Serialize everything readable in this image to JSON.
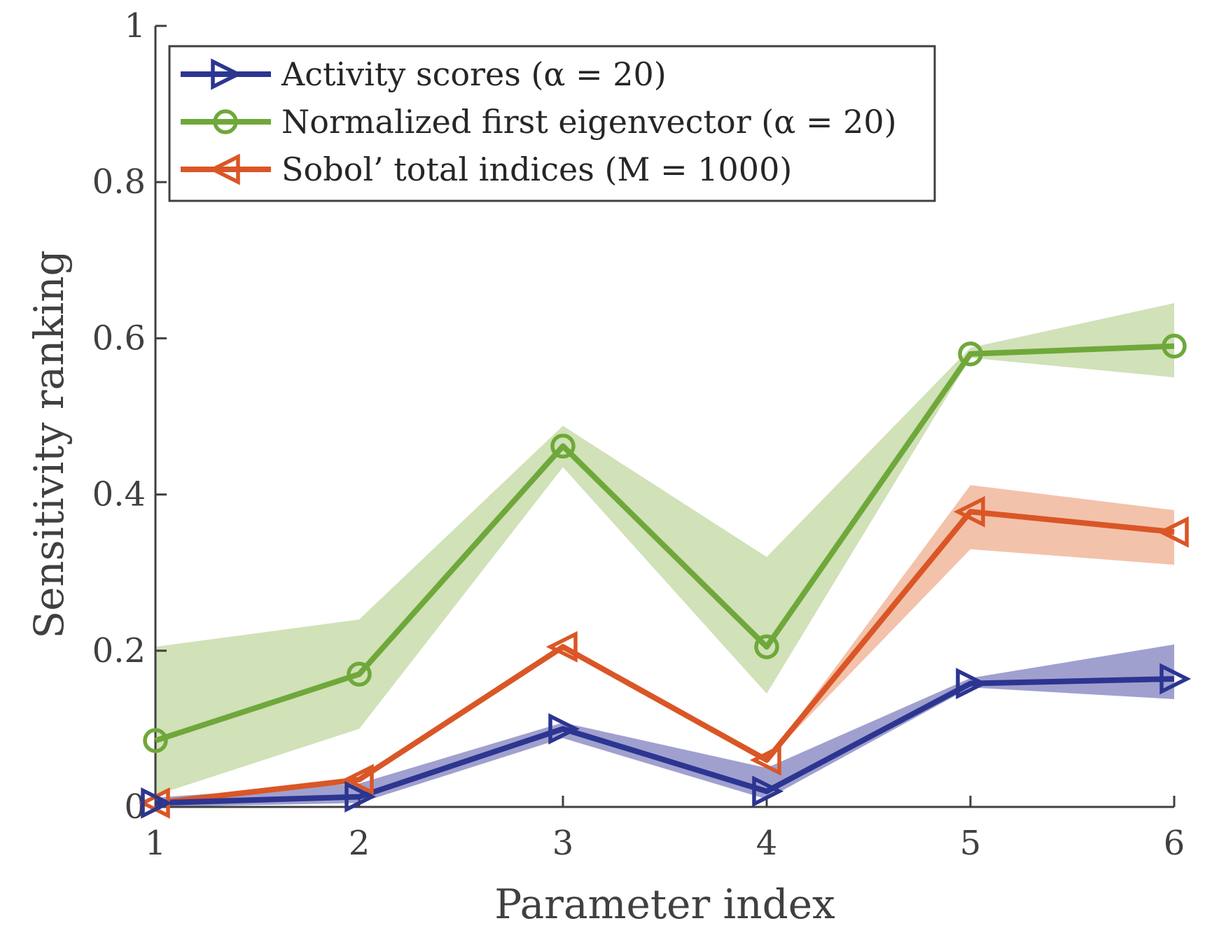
{
  "chart_data": {
    "type": "line",
    "xlabel": "Parameter index",
    "ylabel": "Sensitivity ranking",
    "xlim": [
      1,
      6
    ],
    "ylim": [
      0,
      1
    ],
    "x": [
      1,
      2,
      3,
      4,
      5,
      6
    ],
    "xticks": [
      "1",
      "2",
      "3",
      "4",
      "5",
      "6"
    ],
    "yticks": [
      {
        "value": 0,
        "label": "0"
      },
      {
        "value": 0.2,
        "label": "0.2"
      },
      {
        "value": 0.4,
        "label": "0.4"
      },
      {
        "value": 0.6,
        "label": "0.6"
      },
      {
        "value": 0.8,
        "label": "0.8"
      },
      {
        "value": 1,
        "label": "1"
      }
    ],
    "grid": false,
    "legend_position": "top-left",
    "series": [
      {
        "key": "activity",
        "name": "Activity scores (α = 20)",
        "color": "#2c3590",
        "band_color": "#8f8fc7",
        "marker": "triangle-right",
        "values": [
          0.005,
          0.013,
          0.1,
          0.02,
          0.158,
          0.164
        ],
        "band_lower": [
          0.0,
          0.005,
          0.088,
          0.01,
          0.153,
          0.138
        ],
        "band_upper": [
          0.012,
          0.03,
          0.108,
          0.05,
          0.165,
          0.208
        ]
      },
      {
        "key": "eigen",
        "name": "Normalized first eigenvector (α = 20)",
        "color": "#6fa83a",
        "band_color": "#c9dcab",
        "marker": "circle",
        "values": [
          0.085,
          0.17,
          0.462,
          0.205,
          0.58,
          0.59
        ],
        "band_lower": [
          0.015,
          0.1,
          0.435,
          0.145,
          0.575,
          0.55
        ],
        "band_upper": [
          0.205,
          0.24,
          0.488,
          0.32,
          0.588,
          0.645
        ]
      },
      {
        "key": "sobol",
        "name": "Sobol’ total indices (M = 1000)",
        "color": "#da5626",
        "band_color": "#f1b79c",
        "marker": "triangle-left",
        "values": [
          0.005,
          0.035,
          0.205,
          0.06,
          0.378,
          0.352
        ],
        "band_lower": [
          0.005,
          0.035,
          0.205,
          0.06,
          0.33,
          0.31
        ],
        "band_upper": [
          0.005,
          0.035,
          0.205,
          0.06,
          0.412,
          0.38
        ]
      }
    ]
  }
}
